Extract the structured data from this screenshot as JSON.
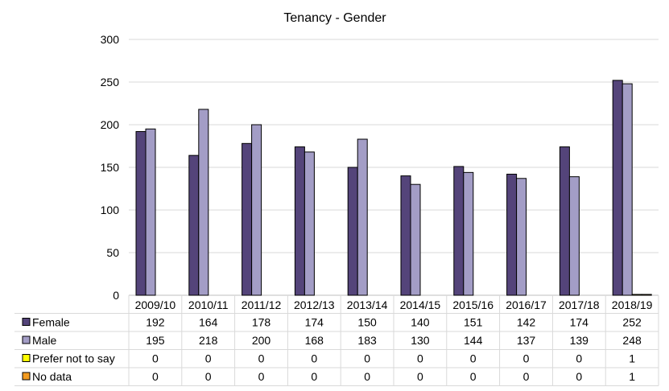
{
  "chart_data": {
    "type": "bar",
    "title": "Tenancy - Gender",
    "categories": [
      "2009/10",
      "2010/11",
      "2011/12",
      "2012/13",
      "2013/14",
      "2014/15",
      "2015/16",
      "2016/17",
      "2017/18",
      "2018/19"
    ],
    "series": [
      {
        "name": "Female",
        "color": "#54447a",
        "values": [
          192,
          164,
          178,
          174,
          150,
          140,
          151,
          142,
          174,
          252
        ]
      },
      {
        "name": "Male",
        "color": "#a39dc6",
        "values": [
          195,
          218,
          200,
          168,
          183,
          130,
          144,
          137,
          139,
          248
        ]
      },
      {
        "name": "Prefer not to say",
        "color": "#ffff00",
        "values": [
          0,
          0,
          0,
          0,
          0,
          0,
          0,
          0,
          0,
          1
        ]
      },
      {
        "name": "No data",
        "color": "#f39b1f",
        "values": [
          0,
          0,
          0,
          0,
          0,
          0,
          0,
          0,
          0,
          1
        ]
      }
    ],
    "ylim": [
      0,
      300
    ],
    "yticks": [
      "0",
      "50",
      "100",
      "150",
      "200",
      "250",
      "300"
    ],
    "grid": true,
    "legend": "data-table"
  }
}
